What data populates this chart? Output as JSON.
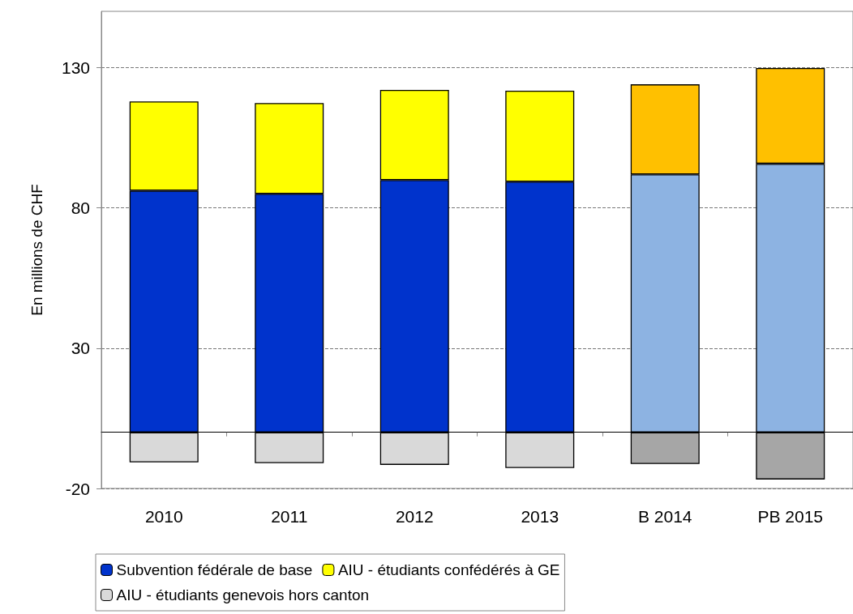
{
  "chart_data": {
    "type": "bar",
    "stacked": true,
    "ylabel": "En millions de CHF",
    "categories": [
      "2010",
      "2011",
      "2012",
      "2013",
      "B 2014",
      "PB 2015"
    ],
    "series": [
      {
        "name": "Subvention fédérale de base",
        "color": "#0033cc",
        "colors": [
          "#0033cc",
          "#0033cc",
          "#0033cc",
          "#0033cc",
          "#8db3e2",
          "#8db3e2"
        ],
        "values": [
          86.1,
          85.0,
          89.9,
          89.3,
          91.9,
          95.7
        ]
      },
      {
        "name": "AIU - étudiants confédérés à GE",
        "color": "#ffff00",
        "colors": [
          "#ffff00",
          "#ffff00",
          "#ffff00",
          "#ffff00",
          "#ffc000",
          "#ffc000"
        ],
        "values": [
          31.8,
          32.3,
          32.1,
          32.4,
          32.1,
          34.1
        ]
      },
      {
        "name": "AIU - étudiants genevois hors canton",
        "color": "#d9d9d9",
        "colors": [
          "#d9d9d9",
          "#d9d9d9",
          "#d9d9d9",
          "#d9d9d9",
          "#a6a6a6",
          "#a6a6a6"
        ],
        "values": [
          -10.7,
          -11.0,
          -11.6,
          -12.7,
          -11.3,
          -16.8
        ]
      }
    ],
    "ylim": [
      -20,
      150
    ],
    "yticks": [
      -20,
      30,
      80,
      130
    ],
    "grid": "y",
    "legend": "bottom"
  }
}
